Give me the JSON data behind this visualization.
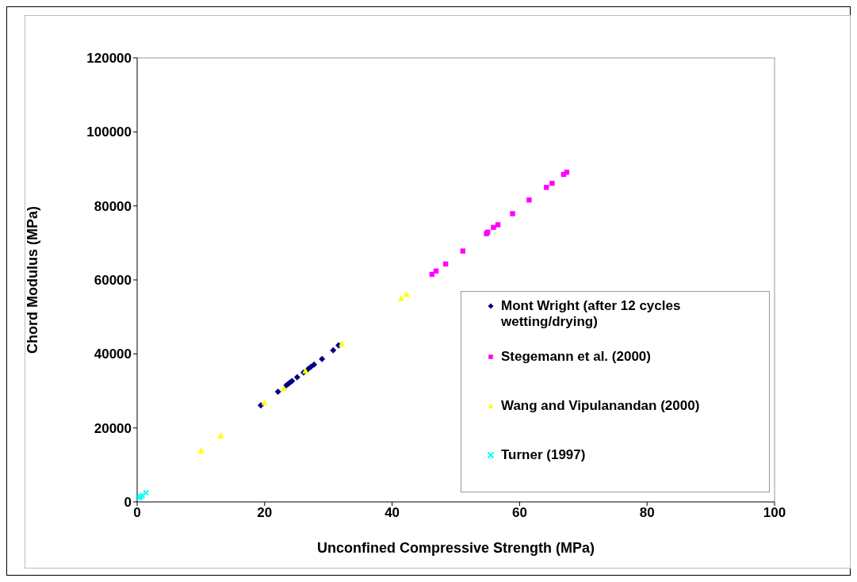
{
  "chart_data": {
    "type": "scatter",
    "xlabel": "Unconfined Compressive Strength (MPa)",
    "ylabel": "Chord Modulus (MPa)",
    "xlim": [
      0,
      100
    ],
    "xticks": [
      0,
      20,
      40,
      60,
      80,
      100
    ],
    "ylim": [
      0,
      120000
    ],
    "yticks": [
      0,
      20000,
      40000,
      60000,
      80000,
      100000,
      120000
    ],
    "grid": false,
    "legend": "bottom right",
    "series": [
      {
        "name": "Mont Wright (after 12 cycles wetting/drying)",
        "color": "#000080",
        "marker": "diamond",
        "x": [
          19.4,
          22.1,
          23.4,
          23.7,
          24.0,
          24.3,
          25.1,
          26.1,
          26.8,
          27.25,
          27.75,
          29.0,
          30.75,
          31.6
        ],
        "values": [
          26100,
          29800,
          31500,
          31900,
          32300,
          32700,
          33700,
          35000,
          35900,
          36500,
          37100,
          38600,
          41000,
          42300
        ]
      },
      {
        "name": "Stegemann et al. (2000)",
        "color": "#ff00ff",
        "marker": "square",
        "x": [
          46.25,
          46.9,
          48.4,
          51.1,
          54.8,
          55.0,
          55.9,
          56.6,
          58.9,
          61.5,
          64.2,
          65.1,
          66.9,
          67.4
        ],
        "values": [
          61500,
          62400,
          64300,
          67800,
          72500,
          72900,
          74200,
          74900,
          77900,
          81600,
          85000,
          86100,
          88500,
          89100
        ]
      },
      {
        "name": "Wang and Vipulanandan (2000)",
        "color": "#ffff00",
        "marker": "triangle",
        "x": [
          10.0,
          13.1,
          20.0,
          23.0,
          26.4,
          32.1,
          41.4,
          42.25
        ],
        "values": [
          13800,
          17900,
          26800,
          30700,
          35400,
          42700,
          55000,
          56100
        ]
      },
      {
        "name": "Turner (1997)",
        "color": "#00ffff",
        "marker": "cross",
        "x": [
          0.3,
          0.5,
          0.8,
          1.4
        ],
        "values": [
          1100,
          1400,
          1700,
          2500
        ]
      }
    ]
  }
}
